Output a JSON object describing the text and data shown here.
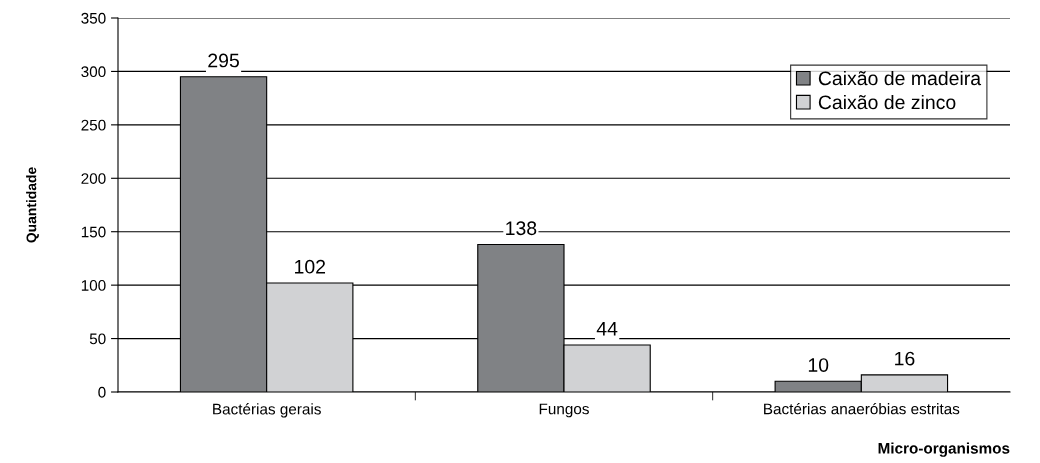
{
  "chart_data": {
    "type": "bar",
    "xlabel": "Micro-organismos",
    "ylabel": "Quantidade",
    "categories": [
      "Bactérias gerais",
      "Fungos",
      "Bactérias anaeróbias estritas"
    ],
    "series": [
      {
        "name": "Caixão de madeira",
        "color": "#808285",
        "values": [
          295,
          138,
          10
        ]
      },
      {
        "name": "Caixão de zinco",
        "color": "#d1d2d4",
        "values": [
          102,
          44,
          16
        ]
      }
    ],
    "ylim": [
      0,
      350
    ],
    "yticks": [
      0,
      50,
      100,
      150,
      200,
      250,
      300,
      350
    ],
    "grid": "y",
    "legend": "top right",
    "data_labels": true
  }
}
